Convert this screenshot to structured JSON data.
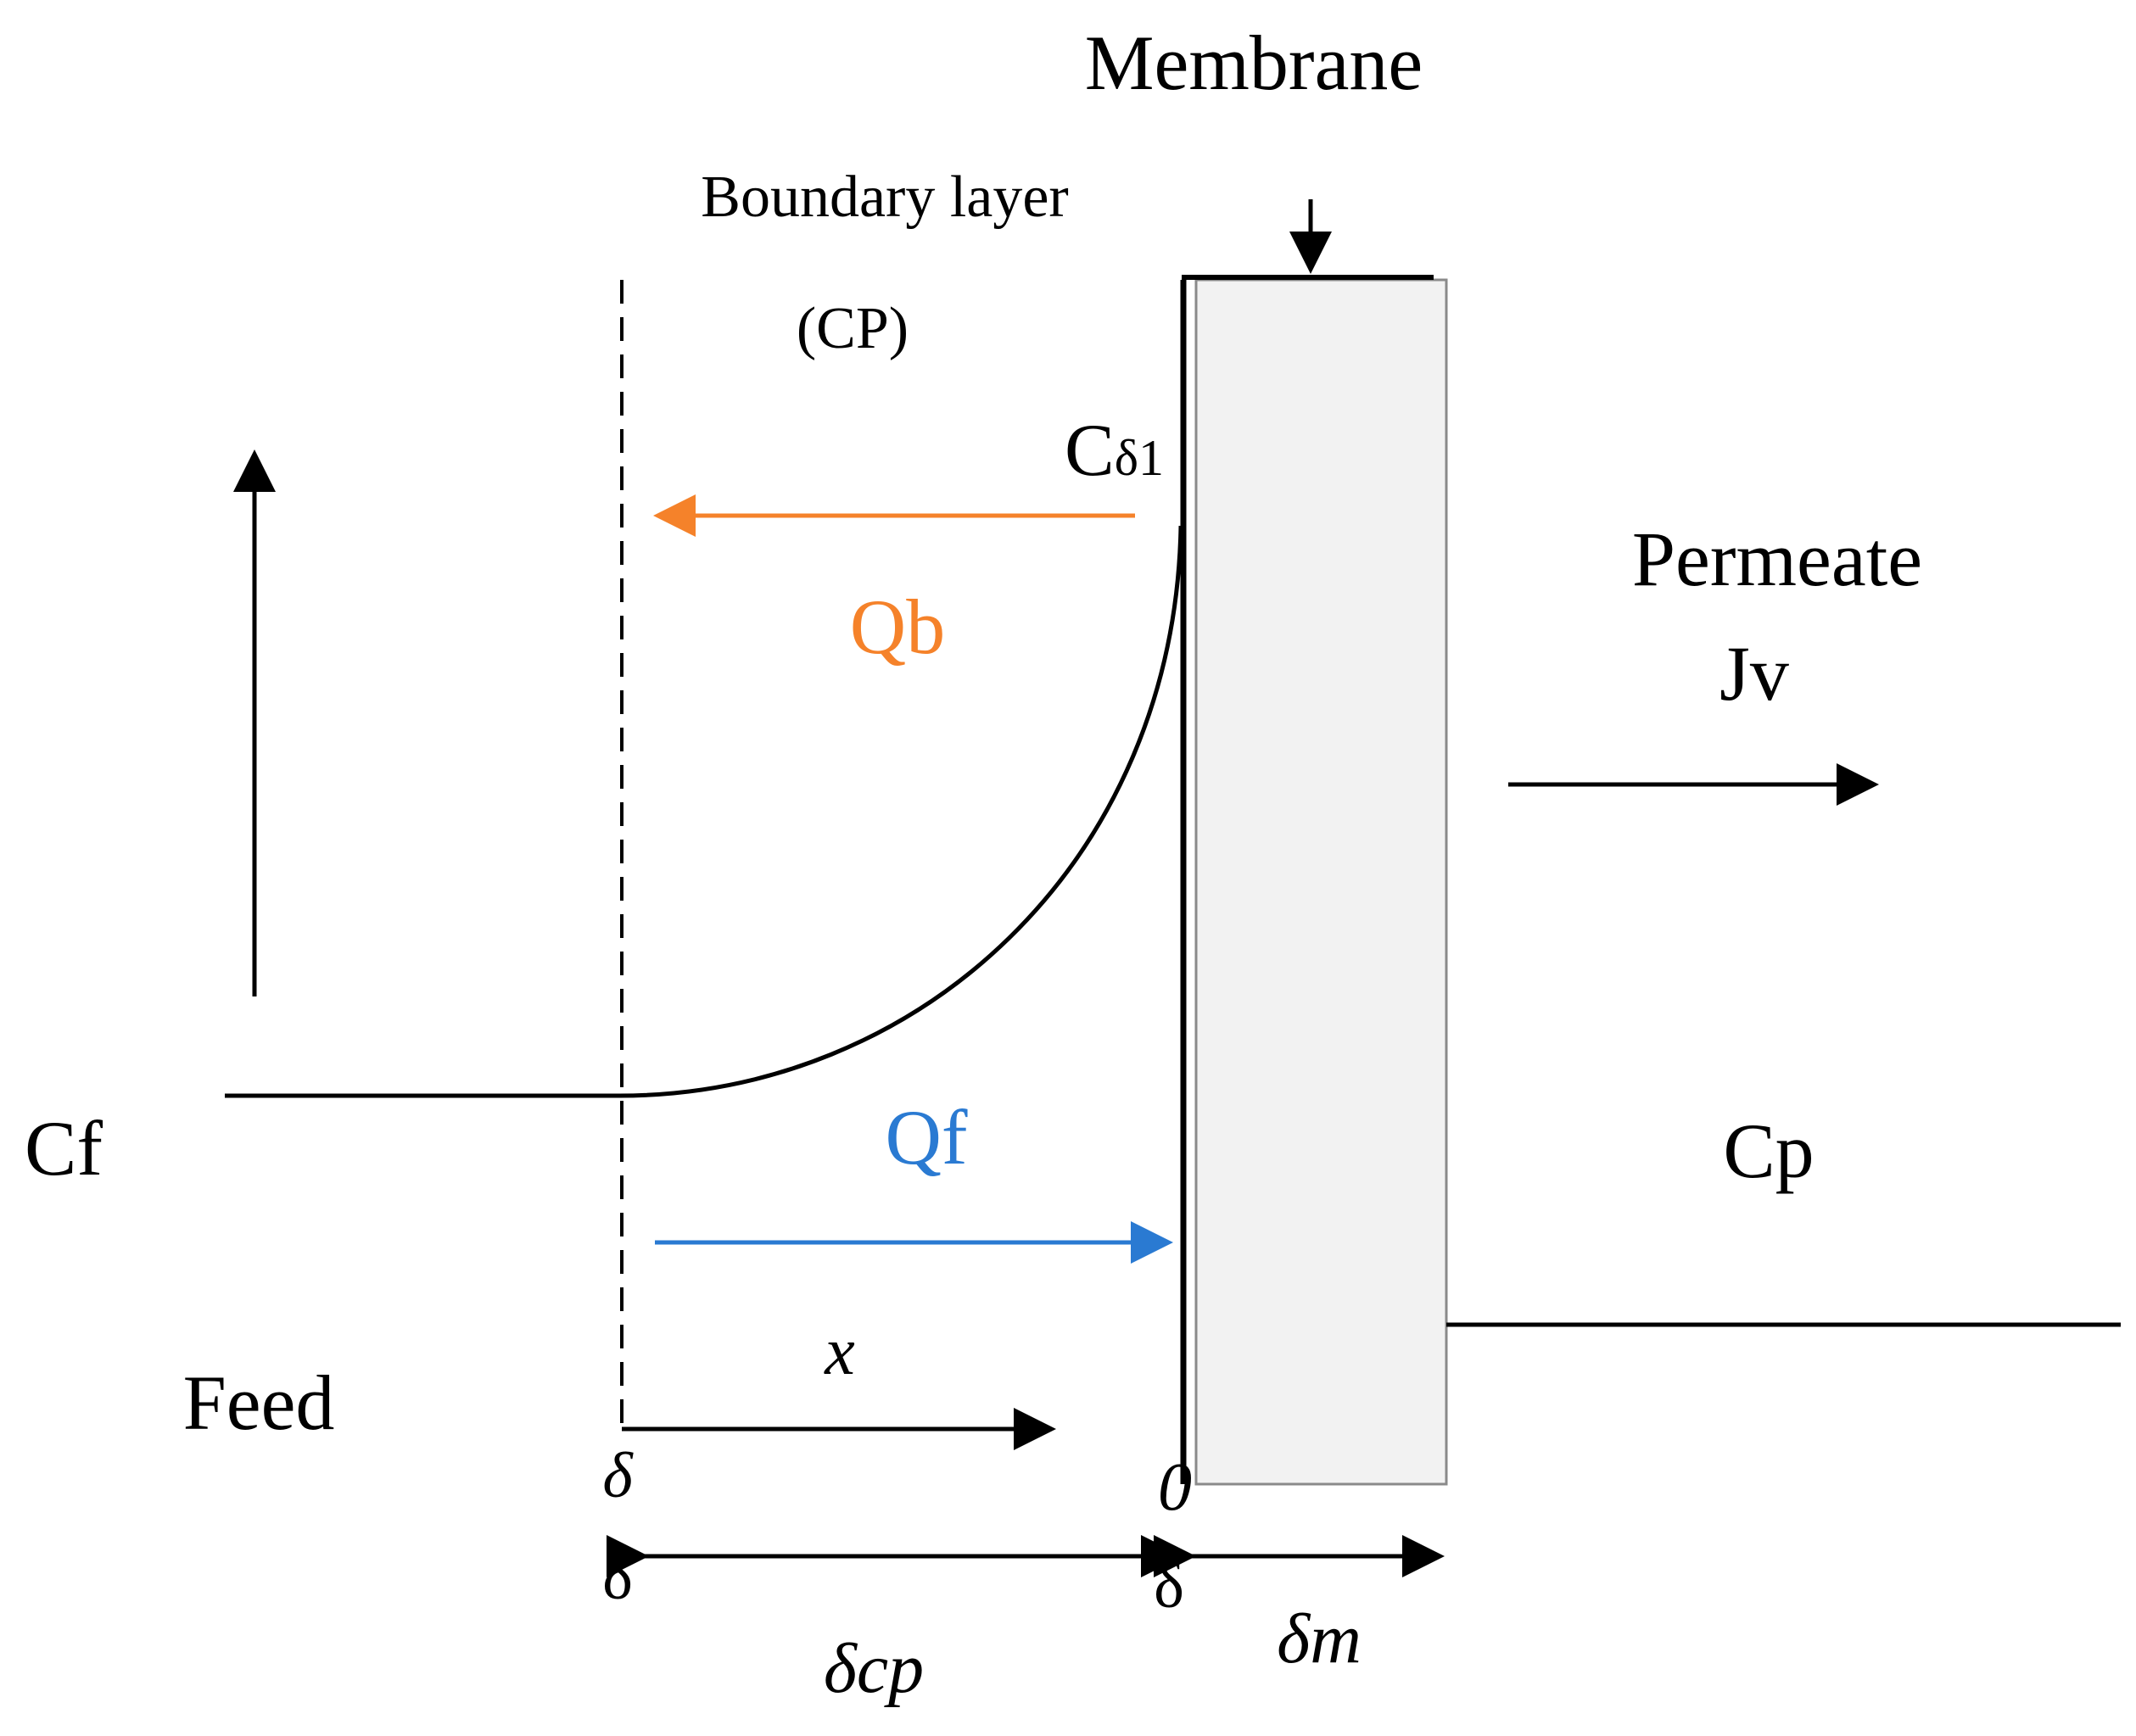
{
  "title": "Membrane",
  "labels": {
    "membrane": "Membrane",
    "boundary_layer": "Boundary layer",
    "cp_paren": "(CP)",
    "c_delta1_main": "C",
    "c_delta1_sub": "δ1",
    "qb": "Qb",
    "qf": "Qf",
    "permeate": "Permeate",
    "jv": "Jv",
    "cf": "Cf",
    "cp": "Cp",
    "feed": "Feed",
    "x": "x",
    "delta_upper": "δ",
    "zero": "0",
    "delta_left": "δ",
    "delta_mid": "δ",
    "delta_cp": "δcp",
    "delta_m": "δm"
  },
  "colors": {
    "qb_arrow": "#f5822a",
    "qf_arrow": "#2a7ad2",
    "membrane_fill": "#f2f2f2",
    "membrane_border": "#8a8a8a",
    "ink": "#000000"
  }
}
